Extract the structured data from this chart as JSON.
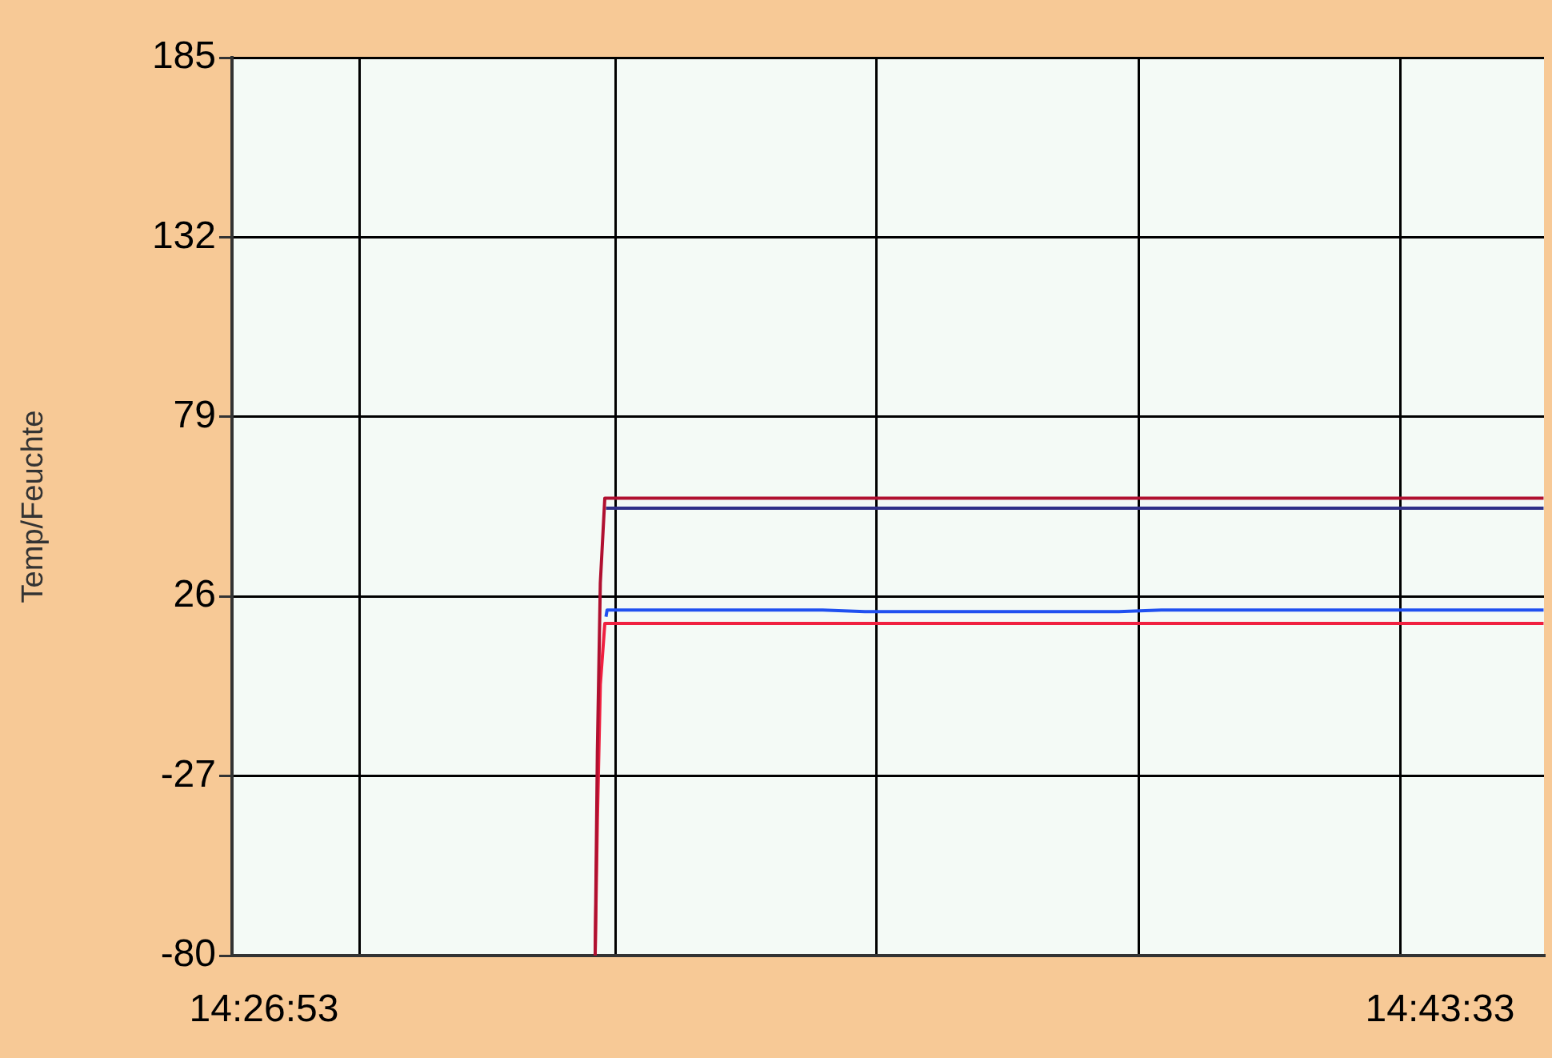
{
  "chart_data": {
    "type": "line",
    "ylabel": "Temp/Feuchte",
    "xlim": [
      14.4405,
      14.7504
    ],
    "xticks": [
      {
        "value": 14.448056,
        "label": "14:26:53"
      },
      {
        "value": 14.47072,
        "label": null
      },
      {
        "value": 14.53111,
        "label": null
      },
      {
        "value": 14.59278,
        "label": null
      },
      {
        "value": 14.65472,
        "label": null
      },
      {
        "value": 14.71639,
        "label": null
      },
      {
        "value": 14.725833,
        "label": "14:43:33"
      }
    ],
    "ylim": [
      -80,
      185
    ],
    "yticks": [
      -80,
      -27,
      26,
      79,
      132,
      185
    ],
    "grid": true,
    "legend": false,
    "marker": "none",
    "line_style": "solid",
    "series": [
      {
        "color": "#b01030",
        "x": [
          14.52628,
          14.5268,
          14.5275,
          14.52856,
          14.7503
        ],
        "values": [
          -80,
          -20,
          30,
          55,
          55
        ]
      },
      {
        "color": "#303088",
        "x": [
          14.52884,
          14.7503
        ],
        "values": [
          52,
          52
        ]
      },
      {
        "color": "#2050f0",
        "x": [
          14.52884,
          14.5291,
          14.58,
          14.59,
          14.65,
          14.66,
          14.7503
        ],
        "values": [
          20,
          22,
          22,
          21.5,
          21.5,
          22,
          22
        ]
      },
      {
        "color": "#f02040",
        "x": [
          14.52628,
          14.5268,
          14.5275,
          14.52856,
          14.7503
        ],
        "values": [
          -80,
          -40,
          0,
          18,
          18
        ]
      }
    ]
  }
}
